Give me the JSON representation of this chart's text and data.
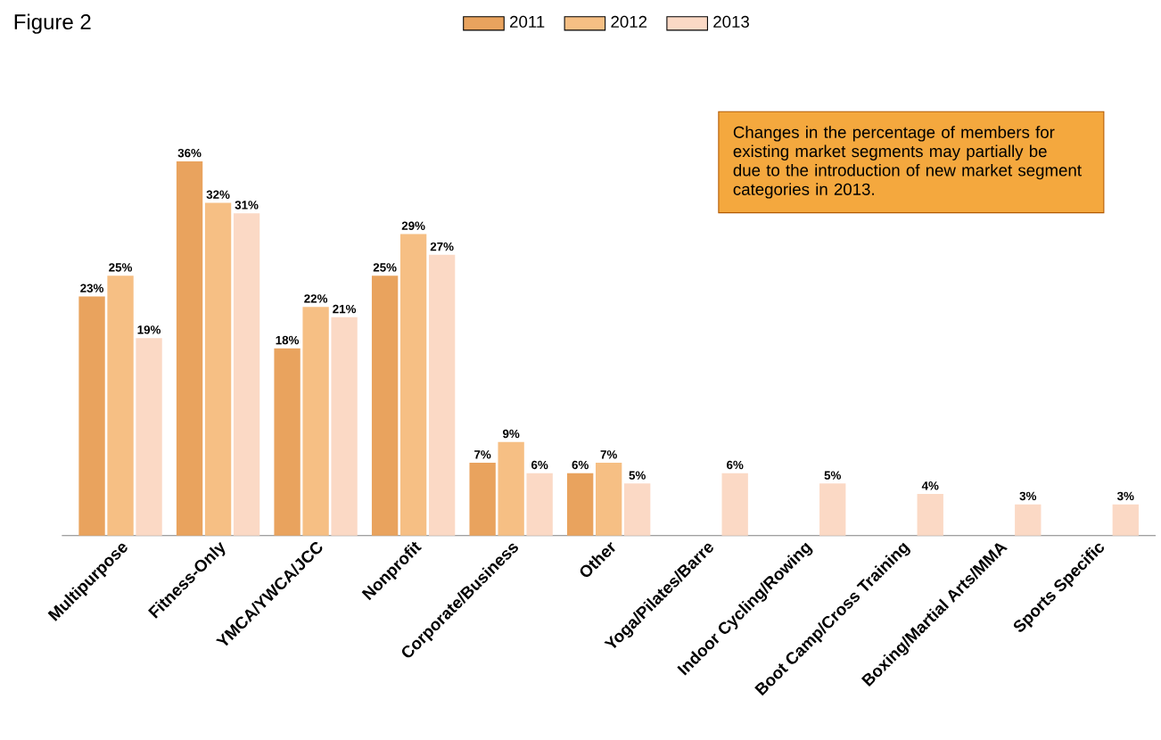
{
  "chart_data": {
    "type": "bar",
    "title": "Figure 2",
    "categories": [
      "Multipurpose",
      "Fitness-Only",
      "YMCA/YWCA/JCC",
      "Nonprofit",
      "Corporate/Business",
      "Other",
      "Yoga/Pilates/Barre",
      "Indoor Cycling/Rowing",
      "Boot Camp/Cross Training",
      "Boxing/Martial Arts/MMA",
      "Sports Specific"
    ],
    "series": [
      {
        "name": "2011",
        "color": "#e9a35e",
        "values": [
          23,
          36,
          18,
          25,
          7,
          6,
          null,
          null,
          null,
          null,
          null
        ],
        "value_labels": [
          "23%",
          "36%",
          "18%",
          "25%",
          "7%",
          "6%",
          null,
          null,
          null,
          null,
          null
        ]
      },
      {
        "name": "2012",
        "color": "#f6bf84",
        "values": [
          25,
          32,
          22,
          29,
          9,
          7,
          null,
          null,
          null,
          null,
          null
        ],
        "value_labels": [
          "25%",
          "32%",
          "22%",
          "29%",
          "9%",
          "7%",
          null,
          null,
          null,
          null,
          null
        ]
      },
      {
        "name": "2013",
        "color": "#fbd9c5",
        "values": [
          19,
          31,
          21,
          27,
          6,
          5,
          6,
          5,
          4,
          3,
          3
        ],
        "value_labels": [
          "19%",
          "31%",
          "21%",
          "27%",
          "6%",
          "5%",
          "6%",
          "5%",
          "4%",
          "3%",
          "3%"
        ]
      }
    ],
    "legend": "top",
    "annotations": [
      "Changes in the percentage of members for existing market segments may partially be due to the introduction of new market segment categories in 2013."
    ]
  }
}
